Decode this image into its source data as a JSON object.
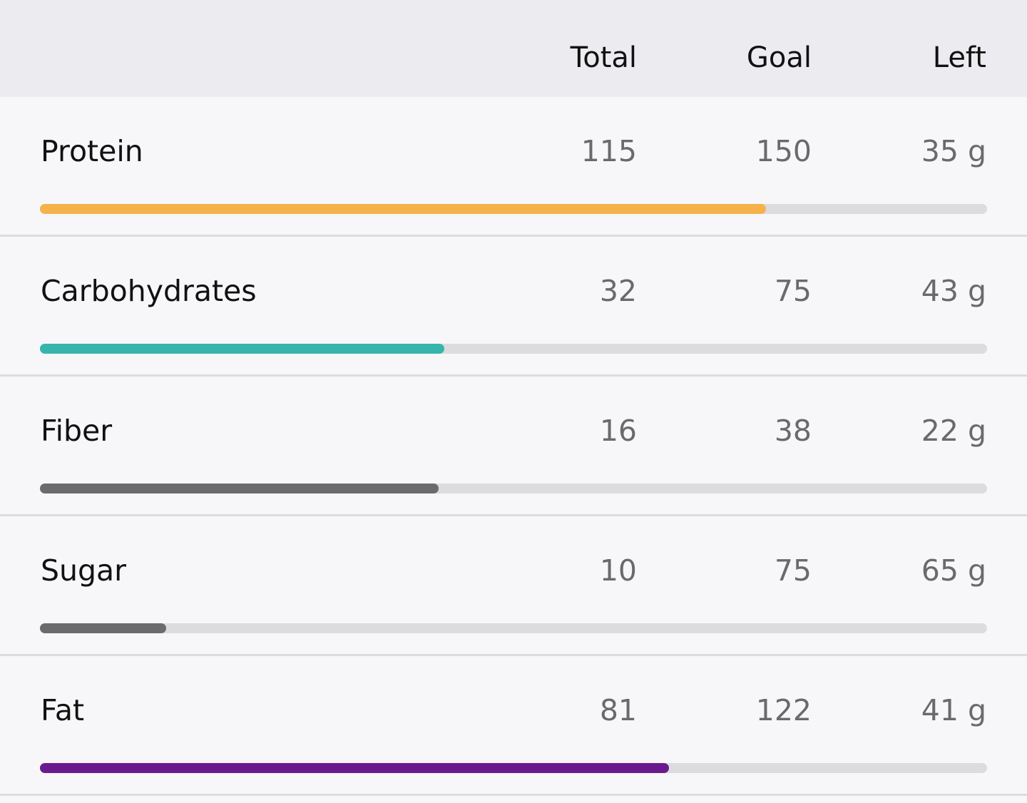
{
  "table": {
    "columns": [
      "Total",
      "Goal",
      "Left"
    ],
    "rows": [
      {
        "name": "Protein",
        "total": 115,
        "goal": 150,
        "left": "35 g",
        "color": "#f5b24a"
      },
      {
        "name": "Carbohydrates",
        "total": 32,
        "goal": 75,
        "left": "43 g",
        "color": "#35b5ac"
      },
      {
        "name": "Fiber",
        "total": 16,
        "goal": 38,
        "left": "22 g",
        "color": "#6b6b6d"
      },
      {
        "name": "Sugar",
        "total": 10,
        "goal": 75,
        "left": "65 g",
        "color": "#6b6b6d"
      },
      {
        "name": "Fat",
        "total": 81,
        "goal": 122,
        "left": "41 g",
        "color": "#6a1a8f"
      }
    ]
  }
}
